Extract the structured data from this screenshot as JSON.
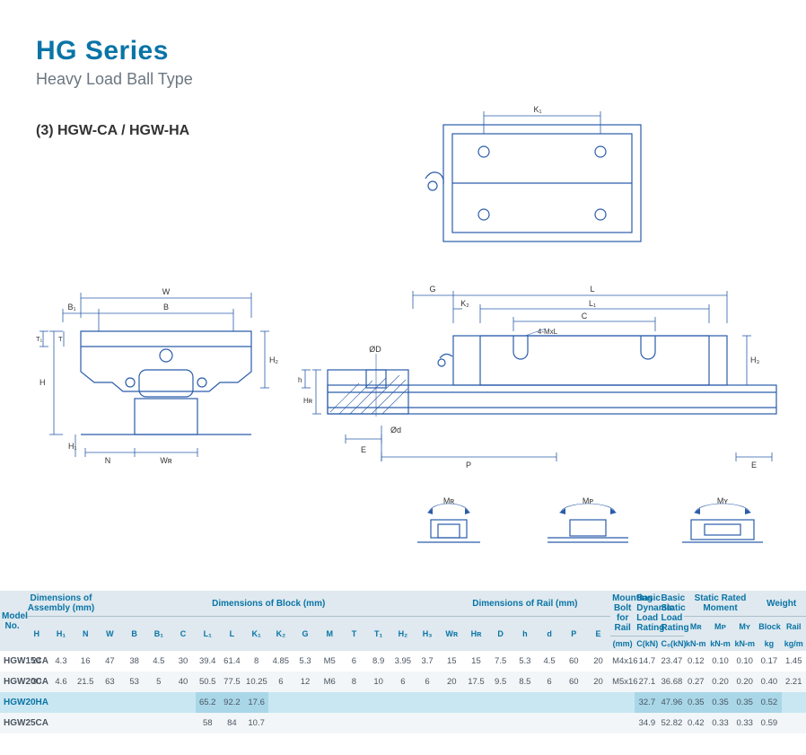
{
  "colors": {
    "accent": "#0a74a6",
    "text": "#4b5560",
    "thead_bg": "#dfe9ef",
    "row_alt": "#f2f6f8",
    "highlight_row": "#c9e7f2",
    "highlight_cell": "#a9d7e8",
    "line": "#2a5caa"
  },
  "header": {
    "series": "HG Series",
    "subtitle": "Heavy Load Ball Type",
    "section": "(3) HGW-CA / HGW-HA"
  },
  "diagram_labels": {
    "top_K1": "K₁",
    "front_W": "W",
    "front_B": "B",
    "front_B1": "B₁",
    "front_T1": "T₁",
    "front_T": "T",
    "front_H": "H",
    "front_H2": "H₂",
    "front_H1": "H₁",
    "front_N": "N",
    "front_WR": "Wʀ",
    "side_G": "G",
    "side_L": "L",
    "side_K2": "K₂",
    "side_L1": "L₁",
    "side_C": "C",
    "side_4MxL": "4-MxL",
    "side_H3": "H₃",
    "side_phiD": "ØD",
    "side_h": "h",
    "side_HR": "Hʀ",
    "side_phid": "Ød",
    "side_E": "E",
    "side_P": "P",
    "side_E2": "E",
    "MR": "Mʀ",
    "MP": "Mᴘ",
    "MY": "Mʏ"
  },
  "table": {
    "groups": [
      {
        "label": "Model No.",
        "span": 1
      },
      {
        "label": "Dimensions of Assembly (mm)",
        "span": 3
      },
      {
        "label": "Dimensions of Block (mm)",
        "span": 14
      },
      {
        "label": "Dimensions of Rail (mm)",
        "span": 7
      },
      {
        "label": "Mounting Bolt for Rail",
        "span": 1
      },
      {
        "label": "Basic Dynamic Load Rating",
        "span": 1
      },
      {
        "label": "Basic Static Load Rating",
        "span": 1
      },
      {
        "label": "Static Rated Moment",
        "span": 3
      },
      {
        "label": "Weight",
        "span": 2
      }
    ],
    "columns": [
      "",
      "H",
      "H₁",
      "N",
      "W",
      "B",
      "B₁",
      "C",
      "L₁",
      "L",
      "K₁",
      "K₂",
      "G",
      "M",
      "T",
      "T₁",
      "H₂",
      "H₃",
      "Wʀ",
      "Hʀ",
      "D",
      "h",
      "d",
      "P",
      "E",
      "(mm)",
      "C(kN)",
      "C₀(kN)",
      "Mʀ",
      "Mᴘ",
      "Mʏ",
      "Block",
      "Rail"
    ],
    "units_row": [
      "",
      "",
      "",
      "",
      "",
      "",
      "",
      "",
      "",
      "",
      "",
      "",
      "",
      "",
      "",
      "",
      "",
      "",
      "",
      "",
      "",
      "",
      "",
      "",
      "",
      "",
      "",
      "",
      "kN-m",
      "kN-m",
      "kN-m",
      "kg",
      "kg/m"
    ],
    "rows": [
      {
        "model": "HGW15CA",
        "cells": [
          "24",
          "4.3",
          "16",
          "47",
          "38",
          "4.5",
          "30",
          "39.4",
          "61.4",
          "8",
          "4.85",
          "5.3",
          "M5",
          "6",
          "8.9",
          "3.95",
          "3.7",
          "15",
          "15",
          "7.5",
          "5.3",
          "4.5",
          "60",
          "20",
          "M4x16",
          "14.7",
          "23.47",
          "0.12",
          "0.10",
          "0.10",
          "0.17",
          "1.45"
        ]
      },
      {
        "model": "HGW20CA",
        "cells": [
          "30",
          "4.6",
          "21.5",
          "63",
          "53",
          "5",
          "40",
          "50.5",
          "77.5",
          "10.25",
          "6",
          "12",
          "M6",
          "8",
          "10",
          "6",
          "6",
          "20",
          "17.5",
          "9.5",
          "8.5",
          "6",
          "60",
          "20",
          "M5x16",
          "27.1",
          "36.68",
          "0.27",
          "0.20",
          "0.20",
          "0.40",
          "2.21"
        ],
        "share_top": false
      },
      {
        "model": "HGW20HA",
        "cells": [
          "",
          "",
          "",
          "",
          "",
          "",
          "",
          "65.2",
          "92.2",
          "17.6",
          "",
          "",
          "",
          "",
          "",
          "",
          "",
          "",
          "",
          "",
          "",
          "",
          "",
          "",
          "",
          "32.7",
          "47.96",
          "0.35",
          "0.35",
          "0.35",
          "0.52",
          ""
        ],
        "highlight": true,
        "hl_cells": [
          7,
          8,
          9,
          25,
          26,
          27,
          28,
          29,
          30
        ]
      },
      {
        "model": "HGW25CA",
        "cells": [
          "",
          "",
          "",
          "",
          "",
          "",
          "",
          "58",
          "84",
          "10.7",
          "",
          "",
          "",
          "",
          "",
          "",
          "",
          "",
          "",
          "",
          "",
          "",
          "",
          "",
          "",
          "34.9",
          "52.82",
          "0.42",
          "0.33",
          "0.33",
          "0.59",
          ""
        ]
      }
    ]
  }
}
